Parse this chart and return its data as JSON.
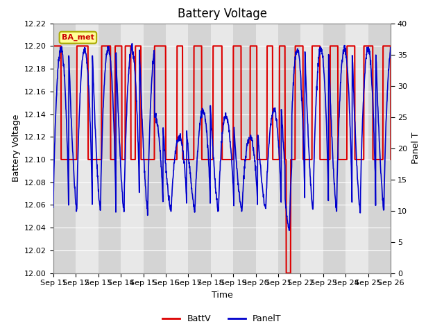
{
  "title": "Battery Voltage",
  "xlabel": "Time",
  "ylabel_left": "Battery Voltage",
  "ylabel_right": "Panel T",
  "ylim_left": [
    12.0,
    12.22
  ],
  "ylim_right": [
    0,
    40
  ],
  "yticks_left": [
    12.0,
    12.02,
    12.04,
    12.06,
    12.08,
    12.1,
    12.12,
    12.14,
    12.16,
    12.18,
    12.2,
    12.22
  ],
  "yticks_right": [
    0,
    5,
    10,
    15,
    20,
    25,
    30,
    35,
    40
  ],
  "x_labels": [
    "Sep 11",
    "Sep 12",
    "Sep 13",
    "Sep 14",
    "Sep 15",
    "Sep 16",
    "Sep 17",
    "Sep 18",
    "Sep 19",
    "Sep 20",
    "Sep 21",
    "Sep 22",
    "Sep 23",
    "Sep 24",
    "Sep 25",
    "Sep 26"
  ],
  "annotation_text": "BA_met",
  "annotation_color": "#cc0000",
  "annotation_bg": "#ffff99",
  "line_batt_color": "#dd0000",
  "line_panel_color": "#0000cc",
  "legend_batt": "BattV",
  "legend_panel": "PanelT",
  "background_color": "#ffffff",
  "band_dark": "#d4d4d4",
  "band_light": "#e8e8e8",
  "grid_color": "#f0f0f0",
  "title_fontsize": 12,
  "axis_label_fontsize": 9,
  "tick_fontsize": 8
}
